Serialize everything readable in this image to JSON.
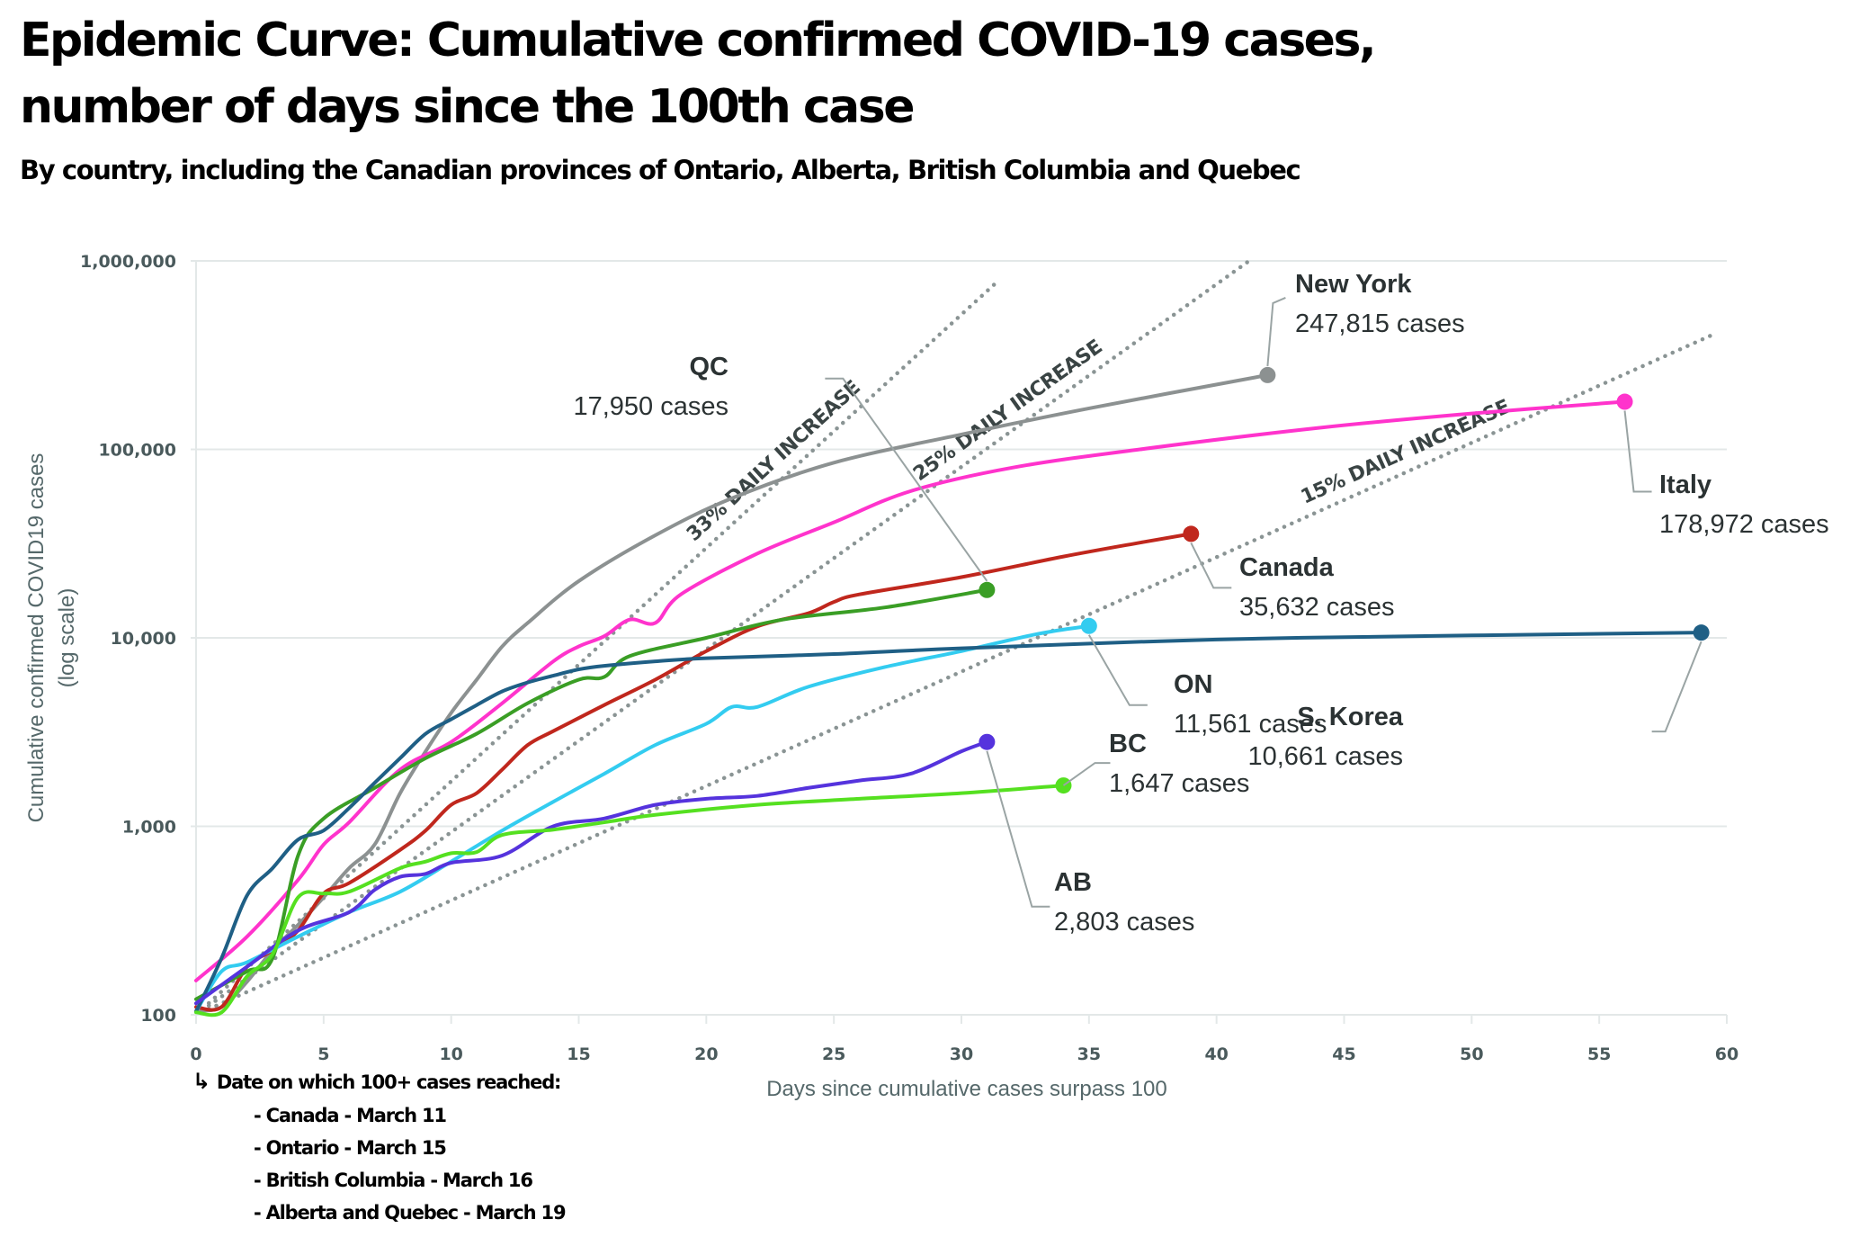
{
  "title": "Epidemic Curve: Cumulative confirmed COVID-19 cases, number of days since the 100th case",
  "subtitle": "By country, including the Canadian provinces of Ontario, Alberta, British Columbia and Quebec",
  "footnote": {
    "heading": "Date on which 100+ cases reached:",
    "arrow_icon": "↳",
    "items": [
      "- Canada - March 11",
      "- Ontario - March 15",
      "- British Columbia - March 16",
      "- Alberta and Quebec - March 19"
    ]
  },
  "chart_data": {
    "type": "line",
    "title": "Epidemic Curve: Cumulative confirmed COVID-19 cases, number of days since the 100th case",
    "subtitle": "By country, including the Canadian provinces of Ontario, Alberta, British Columbia and Quebec",
    "xlabel": "Days since cumulative cases surpass 100",
    "ylabel": "Cumulative confirmed COVID19 cases",
    "ylabel_sub": "(log scale)",
    "yscale": "log",
    "xlim": [
      0,
      60
    ],
    "ylim": [
      100,
      1000000
    ],
    "grid": "horizontal",
    "x_ticks": [
      0,
      5,
      10,
      15,
      20,
      25,
      30,
      35,
      40,
      45,
      50,
      55,
      60
    ],
    "x_tick_labels": [
      "0",
      "5",
      "10",
      "15",
      "20",
      "25",
      "30",
      "35",
      "40",
      "45",
      "50",
      "55",
      "60"
    ],
    "y_ticks": [
      100,
      1000,
      10000,
      100000,
      1000000
    ],
    "y_tick_labels": [
      "100",
      "1,000",
      "10,000",
      "100,000",
      "1,000,000"
    ],
    "trend_lines": [
      {
        "label": "33% DAILY INCREASE",
        "rate": 0.33,
        "start": 100
      },
      {
        "label": "25% DAILY INCREASE",
        "rate": 0.25,
        "start": 100
      },
      {
        "label": "15% DAILY INCREASE",
        "rate": 0.15,
        "start": 100
      }
    ],
    "series": [
      {
        "name": "New York",
        "color": "#8c9191",
        "label_name": "New York",
        "label_value": "247,815 cases",
        "x": [
          0,
          1,
          2,
          3,
          4,
          5,
          6,
          7,
          8,
          9,
          10,
          11,
          12,
          13,
          15,
          18,
          21,
          25,
          30,
          35,
          42
        ],
        "y": [
          105,
          110,
          150,
          220,
          300,
          420,
          600,
          800,
          1500,
          2500,
          4000,
          6000,
          9000,
          12000,
          20000,
          35000,
          55000,
          85000,
          120000,
          165000,
          247815
        ]
      },
      {
        "name": "Italy",
        "color": "#ff33cc",
        "label_name": "Italy",
        "label_value": "178,972 cases",
        "x": [
          0,
          2,
          4,
          5,
          6,
          8,
          10,
          12,
          14,
          15,
          16,
          17,
          18,
          19,
          22,
          25,
          28,
          32,
          37,
          44,
          50,
          56
        ],
        "y": [
          152,
          260,
          520,
          800,
          1050,
          2000,
          2800,
          4500,
          7500,
          9000,
          10200,
          12500,
          12000,
          17000,
          28000,
          41000,
          60000,
          80000,
          100000,
          130000,
          155000,
          178972
        ]
      },
      {
        "name": "Canada",
        "color": "#c0271d",
        "label_name": "Canada",
        "label_value": "35,632 cases",
        "x": [
          0,
          1,
          2,
          3,
          4,
          5,
          6,
          8,
          9,
          10,
          11,
          12,
          13,
          14,
          16,
          18,
          20,
          22,
          24,
          25,
          26,
          30,
          34,
          37,
          39
        ],
        "y": [
          110,
          110,
          180,
          220,
          280,
          440,
          500,
          750,
          950,
          1300,
          1500,
          2000,
          2700,
          3200,
          4400,
          6000,
          8500,
          11500,
          13500,
          15500,
          17000,
          21000,
          27000,
          32000,
          35632
        ]
      },
      {
        "name": "QC",
        "color": "#3a9e25",
        "label_name": "QC",
        "label_value": "17,950 cases",
        "x": [
          0,
          2,
          3,
          4,
          5,
          7,
          9,
          11,
          13,
          15,
          16,
          17,
          20,
          23,
          27,
          31
        ],
        "y": [
          121,
          170,
          200,
          700,
          1100,
          1600,
          2300,
          3100,
          4500,
          6000,
          6200,
          8000,
          10000,
          12500,
          14500,
          17950
        ]
      },
      {
        "name": "ON",
        "color": "#33ccf0",
        "label_name": "ON",
        "label_value": "11,561 cases",
        "x": [
          0,
          1,
          2,
          4,
          6,
          8,
          10,
          12,
          14,
          16,
          18,
          20,
          21,
          22,
          24,
          27,
          30,
          33,
          35
        ],
        "y": [
          104,
          170,
          190,
          260,
          350,
          450,
          650,
          950,
          1350,
          1900,
          2700,
          3500,
          4300,
          4300,
          5500,
          7000,
          8500,
          10500,
          11561
        ]
      },
      {
        "name": "S. Korea",
        "color": "#1f5f85",
        "label_name": "S. Korea",
        "label_value": "10,661 cases",
        "x": [
          0,
          1,
          2,
          3,
          4,
          5,
          6,
          7,
          8,
          9,
          10,
          11,
          12,
          13,
          14,
          15,
          16,
          18,
          20,
          25,
          30,
          40,
          50,
          59
        ],
        "y": [
          104,
          200,
          430,
          600,
          850,
          950,
          1250,
          1700,
          2300,
          3100,
          3700,
          4400,
          5200,
          5800,
          6300,
          6800,
          7100,
          7500,
          7800,
          8200,
          8800,
          9800,
          10300,
          10661
        ]
      },
      {
        "name": "AB",
        "color": "#5533dd",
        "label_name": "AB",
        "label_value": "2,803 cases",
        "x": [
          0,
          2,
          4,
          6,
          7,
          8,
          9,
          10,
          12,
          14,
          16,
          18,
          20,
          22,
          24,
          26,
          28,
          30,
          31
        ],
        "y": [
          115,
          180,
          280,
          350,
          460,
          540,
          560,
          640,
          700,
          1000,
          1100,
          1300,
          1400,
          1450,
          1600,
          1750,
          1900,
          2500,
          2803
        ]
      },
      {
        "name": "BC",
        "color": "#55e020",
        "label_name": "BC",
        "label_value": "1,647 cases",
        "x": [
          0,
          1,
          2,
          3,
          4,
          5,
          6,
          8,
          9,
          10,
          11,
          12,
          14,
          16,
          18,
          22,
          26,
          30,
          34
        ],
        "y": [
          103,
          103,
          160,
          210,
          420,
          440,
          450,
          600,
          650,
          720,
          730,
          900,
          960,
          1050,
          1150,
          1300,
          1400,
          1500,
          1647
        ]
      }
    ]
  }
}
